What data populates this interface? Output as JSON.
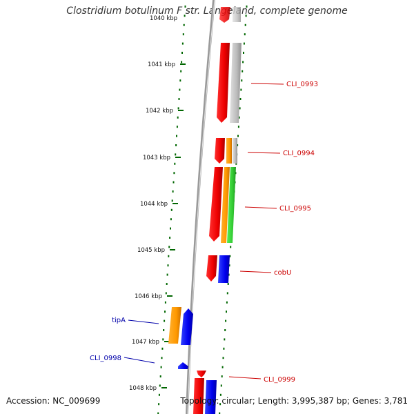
{
  "title": "Clostridium botulinum F str. Langeland, complete genome",
  "footer": {
    "accession": "Accession: NC_009699",
    "stats": "Topology: circular; Length: 3,995,387 bp; Genes: 3,781"
  },
  "ruler": {
    "top_label": "1040 kbp",
    "ticks": [
      "1041 kbp",
      "1042 kbp",
      "1043 kbp",
      "1044 kbp",
      "1045 kbp",
      "1046 kbp",
      "1047 kbp",
      "1048 kbp"
    ]
  },
  "genes": [
    {
      "name": "CLI_0993",
      "strand": "forward",
      "color": "#cc0000"
    },
    {
      "name": "CLI_0994",
      "strand": "forward",
      "color": "#cc0000"
    },
    {
      "name": "CLI_0995",
      "strand": "forward",
      "color": "#cc0000"
    },
    {
      "name": "cobU",
      "strand": "forward",
      "color": "#cc0000"
    },
    {
      "name": "tipA",
      "strand": "reverse",
      "color": "#0000aa"
    },
    {
      "name": "CLI_0998",
      "strand": "reverse",
      "color": "#0000aa"
    },
    {
      "name": "CLI_0999",
      "strand": "forward",
      "color": "#cc0000"
    }
  ],
  "colors": {
    "cds": "#ff0000",
    "cds_reverse": "#0000ff",
    "gene": "#bbbbbb",
    "orange": "#ff9900",
    "green": "#33cc33",
    "ticks": "#006600",
    "backbone": "#888888"
  }
}
